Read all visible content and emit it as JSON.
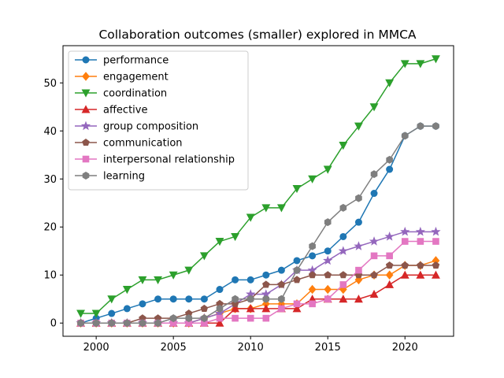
{
  "chart_data": {
    "type": "line",
    "title": "Collaboration outcomes (smaller) explored in MMCA",
    "xlabel": "",
    "ylabel": "",
    "x": [
      1999,
      2000,
      2001,
      2002,
      2003,
      2004,
      2005,
      2006,
      2007,
      2008,
      2009,
      2010,
      2011,
      2012,
      2013,
      2014,
      2015,
      2016,
      2017,
      2018,
      2019,
      2020,
      2021,
      2022
    ],
    "xlim": [
      1997.85,
      2023.15
    ],
    "ylim": [
      -2.75,
      57.75
    ],
    "xticks": [
      2000,
      2005,
      2010,
      2015,
      2020
    ],
    "yticks": [
      0,
      10,
      20,
      30,
      40,
      50
    ],
    "grid": false,
    "legend_position": "top-left",
    "series": [
      {
        "name": "performance",
        "color": "#1f77b4",
        "marker": "circle",
        "values": [
          0,
          1,
          2,
          3,
          4,
          5,
          5,
          5,
          5,
          7,
          9,
          9,
          10,
          11,
          13,
          14,
          15,
          18,
          21,
          27,
          32,
          39,
          41,
          41
        ]
      },
      {
        "name": "engagement",
        "color": "#ff7f0e",
        "marker": "diamond",
        "values": [
          0,
          0,
          0,
          0,
          0,
          0,
          0,
          0,
          1,
          2,
          3,
          3,
          4,
          4,
          4,
          7,
          7,
          7,
          9,
          10,
          10,
          12,
          12,
          13
        ]
      },
      {
        "name": "coordination",
        "color": "#2ca02c",
        "marker": "triangle-down",
        "values": [
          2,
          2,
          5,
          7,
          9,
          9,
          10,
          11,
          14,
          17,
          18,
          22,
          24,
          24,
          28,
          30,
          32,
          37,
          41,
          45,
          50,
          54,
          54,
          55
        ]
      },
      {
        "name": "affective",
        "color": "#d62728",
        "marker": "triangle-up",
        "values": [
          0,
          0,
          0,
          0,
          0,
          0,
          0,
          0,
          0,
          0,
          3,
          3,
          3,
          3,
          3,
          5,
          5,
          5,
          5,
          6,
          8,
          10,
          10,
          10
        ]
      },
      {
        "name": "group composition",
        "color": "#9467bd",
        "marker": "star",
        "values": [
          0,
          0,
          0,
          0,
          0,
          0,
          0,
          0,
          1,
          2,
          4,
          6,
          6,
          8,
          11,
          11,
          13,
          15,
          16,
          17,
          18,
          19,
          19,
          19
        ]
      },
      {
        "name": "communication",
        "color": "#8c564b",
        "marker": "pentagon",
        "values": [
          0,
          0,
          0,
          0,
          1,
          1,
          1,
          2,
          3,
          4,
          4,
          5,
          8,
          8,
          9,
          10,
          10,
          10,
          10,
          10,
          12,
          12,
          12,
          12
        ]
      },
      {
        "name": "interpersonal relationship",
        "color": "#e377c2",
        "marker": "square",
        "values": [
          0,
          0,
          0,
          0,
          0,
          0,
          0,
          0,
          0,
          1,
          1,
          1,
          1,
          3,
          4,
          4,
          5,
          8,
          11,
          14,
          14,
          17,
          17,
          17
        ]
      },
      {
        "name": "learning",
        "color": "#7f7f7f",
        "marker": "hexagon",
        "values": [
          0,
          0,
          0,
          0,
          0,
          0,
          1,
          1,
          1,
          3,
          5,
          5,
          5,
          5,
          11,
          16,
          21,
          24,
          26,
          31,
          34,
          39,
          41,
          41
        ]
      }
    ]
  }
}
